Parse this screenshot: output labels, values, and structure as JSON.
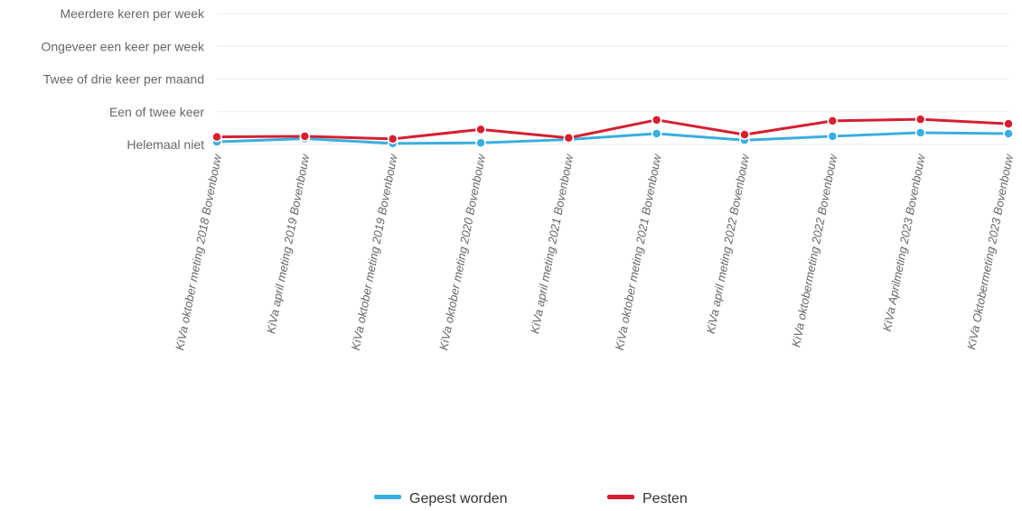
{
  "chart_data": {
    "type": "line",
    "categories": [
      "KiVa oktober meting 2018 Bovenbouw",
      "KiVa april meting 2019 Bovenbouw",
      "KiVa oktober meting 2019 Bovenbouw",
      "KiVa oktober meting 2020 Bovenbouw",
      "KiVa april meting 2021 Bovenbouw",
      "KiVa oktober meting 2021 Bovenbouw",
      "KiVa april meting 2022 Bovenbouw",
      "KiVa oktobermeting 2022 Bovenbouw",
      "KiVa Aprilmeting 2023 Bovenbouw",
      "KiVa Oktobermeting 2023 Bovenbouw"
    ],
    "y_ticks": [
      "Helemaal niet",
      "Een of twee keer",
      "Twee of drie keer per maand",
      "Ongeveer een keer per week",
      "Meerdere keren per week"
    ],
    "ylim": [
      1,
      5
    ],
    "series": [
      {
        "name": "Gepest worden",
        "color": "#3aaee0",
        "values": [
          1.08,
          1.18,
          1.03,
          1.05,
          1.15,
          1.33,
          1.13,
          1.25,
          1.36,
          1.33
        ]
      },
      {
        "name": "Pesten",
        "color": "#d42031",
        "values": [
          1.23,
          1.25,
          1.17,
          1.46,
          1.2,
          1.75,
          1.3,
          1.72,
          1.77,
          1.63
        ]
      }
    ],
    "grid": true,
    "legend_position": "bottom-center"
  }
}
